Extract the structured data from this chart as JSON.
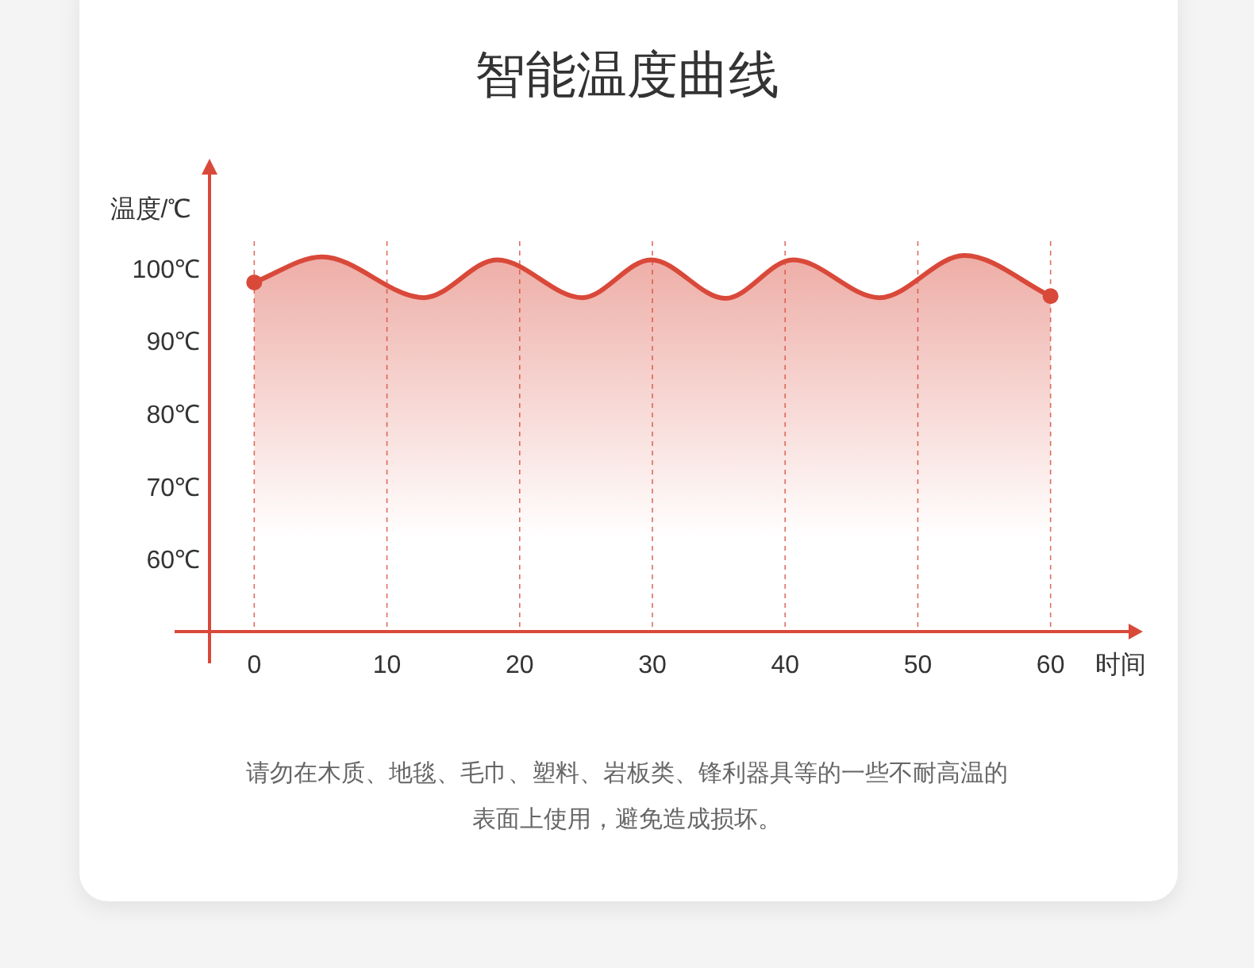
{
  "chart_data": {
    "type": "area",
    "title": "智能温度曲线",
    "ylabel": "温度/℃",
    "xlabel": "时间",
    "x": [
      0,
      5.1,
      12.8,
      18.3,
      24.7,
      29.9,
      35.5,
      40.6,
      47.1,
      53.5,
      60
    ],
    "series": [
      {
        "color": "#d9493a",
        "values": [
          98,
          101.5,
          95.9,
          101.1,
          95.9,
          101.1,
          95.8,
          101.1,
          95.9,
          101.7,
          96.1
        ]
      }
    ],
    "xlim": [
      -6,
      66
    ],
    "xticks": [
      0,
      10,
      20,
      30,
      40,
      50,
      60
    ],
    "ylim": [
      50,
      115
    ],
    "yticks": [
      {
        "value": 60,
        "label": "60℃"
      },
      {
        "value": 70,
        "label": "70℃"
      },
      {
        "value": 80,
        "label": "80℃"
      },
      {
        "value": 90,
        "label": "90℃"
      },
      {
        "value": 100,
        "label": "100℃"
      }
    ],
    "grid": "x",
    "line_style": "solid",
    "annotations": [
      "请勿在木质、地毯、毛巾、塑料、岩板类、锋利器具等的一些不耐高温的表面上使用，避免造成损坏。"
    ]
  }
}
